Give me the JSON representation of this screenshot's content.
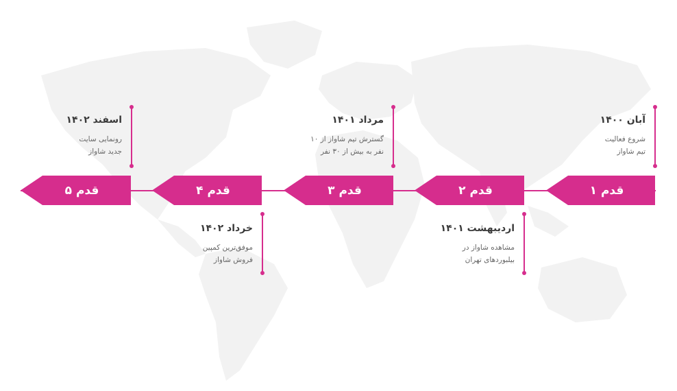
{
  "colors": {
    "accent": "#d62d8d",
    "map": "#f2f2f2",
    "title_text": "#3a3a3a",
    "desc_text": "#666666"
  },
  "steps": [
    {
      "label": "قدم ۱"
    },
    {
      "label": "قدم ۲"
    },
    {
      "label": "قدم ۳"
    },
    {
      "label": "قدم ۴"
    },
    {
      "label": "قدم ۵"
    }
  ],
  "milestones": [
    {
      "title": "آبان ۱۴۰۰",
      "desc": "شروع فعالیت\nتیم شاواز"
    },
    {
      "title": "اردیبهشت ۱۴۰۱",
      "desc": "مشاهده شاواز در\nبیلبوردهای تهران"
    },
    {
      "title": "مرداد ۱۴۰۱",
      "desc": "گسترش تیم شاواز از ۱۰\nنفر به بیش از ۳۰ نفر"
    },
    {
      "title": "خرداد ۱۴۰۲",
      "desc": "موفق‌ترین کمپین\nفروش شاواز"
    },
    {
      "title": "اسفند ۱۴۰۲",
      "desc": "رونمایی سایت\nجدید شاواز"
    }
  ]
}
